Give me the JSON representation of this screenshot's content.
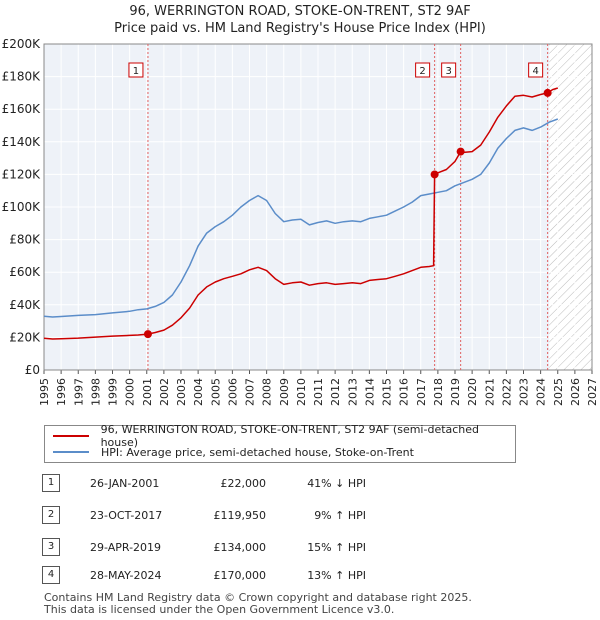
{
  "title_line1": "96, WERRINGTON ROAD, STOKE-ON-TRENT, ST2 9AF",
  "title_line2": "Price paid vs. HM Land Registry's House Price Index (HPI)",
  "chart_data": {
    "type": "line",
    "title": "96, WERRINGTON ROAD, STOKE-ON-TRENT, ST2 9AF",
    "subtitle": "Price paid vs. HM Land Registry's House Price Index (HPI)",
    "xlabel": "",
    "ylabel": "",
    "xlim": [
      1995,
      2027
    ],
    "ylim": [
      0,
      200000
    ],
    "x_ticks": [
      "1995",
      "1996",
      "1997",
      "1998",
      "1999",
      "2000",
      "2001",
      "2002",
      "2003",
      "2004",
      "2005",
      "2006",
      "2007",
      "2008",
      "2009",
      "2010",
      "2011",
      "2012",
      "2013",
      "2014",
      "2015",
      "2016",
      "2017",
      "2018",
      "2019",
      "2020",
      "2021",
      "2022",
      "2023",
      "2024",
      "2025",
      "2026",
      "2027"
    ],
    "y_ticks": [
      {
        "value": 0,
        "label": "£0"
      },
      {
        "value": 20000,
        "label": "£20K"
      },
      {
        "value": 40000,
        "label": "£40K"
      },
      {
        "value": 60000,
        "label": "£60K"
      },
      {
        "value": 80000,
        "label": "£80K"
      },
      {
        "value": 100000,
        "label": "£100K"
      },
      {
        "value": 120000,
        "label": "£120K"
      },
      {
        "value": 140000,
        "label": "£140K"
      },
      {
        "value": 160000,
        "label": "£160K"
      },
      {
        "value": 180000,
        "label": "£180K"
      },
      {
        "value": 200000,
        "label": "£200K"
      }
    ],
    "grid": true,
    "forecast_from": 2024.5,
    "series": [
      {
        "name": "96, WERRINGTON ROAD, STOKE-ON-TRENT, ST2 9AF (semi-detached house)",
        "color": "#cc0000",
        "x": [
          1995,
          1995.5,
          1996,
          1997,
          1998,
          1999,
          2000,
          2000.5,
          2001.07,
          2001.5,
          2002,
          2002.5,
          2003,
          2003.5,
          2004,
          2004.5,
          2005,
          2005.5,
          2006,
          2006.5,
          2007,
          2007.5,
          2008,
          2008.5,
          2009,
          2009.5,
          2010,
          2010.5,
          2011,
          2011.5,
          2012,
          2012.5,
          2013,
          2013.5,
          2014,
          2014.5,
          2015,
          2015.5,
          2016,
          2016.5,
          2017,
          2017.5,
          2017.75,
          2017.81,
          2018,
          2018.5,
          2019,
          2019.33,
          2019.5,
          2020,
          2020.5,
          2021,
          2021.5,
          2022,
          2022.5,
          2023,
          2023.5,
          2024,
          2024.41,
          2024.7,
          2025
        ],
        "values": [
          19500,
          19000,
          19200,
          19600,
          20200,
          20800,
          21200,
          21500,
          22000,
          23000,
          24500,
          27500,
          32000,
          38000,
          46000,
          51000,
          54000,
          56000,
          57500,
          59000,
          61500,
          63000,
          61000,
          56000,
          52500,
          53500,
          54000,
          52000,
          53000,
          53500,
          52500,
          53000,
          53500,
          53000,
          55000,
          55500,
          56000,
          57500,
          59000,
          61000,
          63000,
          63500,
          64000,
          119950,
          121000,
          123000,
          128000,
          134000,
          133500,
          134000,
          138000,
          146000,
          155000,
          162000,
          168000,
          168500,
          167500,
          169000,
          170000,
          172000,
          173000
        ]
      },
      {
        "name": "HPI: Average price, semi-detached house, Stoke-on-Trent",
        "color": "#5b8dc9",
        "x": [
          1995,
          1995.5,
          1996,
          1997,
          1998,
          1999,
          2000,
          2000.5,
          2001,
          2001.5,
          2002,
          2002.5,
          2003,
          2003.5,
          2004,
          2004.5,
          2005,
          2005.5,
          2006,
          2006.5,
          2007,
          2007.5,
          2008,
          2008.5,
          2009,
          2009.5,
          2010,
          2010.5,
          2011,
          2011.5,
          2012,
          2012.5,
          2013,
          2013.5,
          2014,
          2014.5,
          2015,
          2015.5,
          2016,
          2016.5,
          2017,
          2017.5,
          2018,
          2018.5,
          2019,
          2019.5,
          2020,
          2020.5,
          2021,
          2021.5,
          2022,
          2022.5,
          2023,
          2023.5,
          2024,
          2024.5,
          2025
        ],
        "values": [
          33000,
          32500,
          32800,
          33500,
          34000,
          35000,
          36000,
          37000,
          37500,
          39000,
          41500,
          46000,
          54000,
          64000,
          76000,
          84000,
          88000,
          91000,
          95000,
          100000,
          104000,
          107000,
          104000,
          96000,
          91000,
          92000,
          92500,
          89000,
          90500,
          91500,
          90000,
          91000,
          91500,
          91000,
          93000,
          94000,
          95000,
          97500,
          100000,
          103000,
          107000,
          108000,
          109000,
          110000,
          113000,
          115000,
          117000,
          120000,
          127000,
          136000,
          142000,
          147000,
          148500,
          147000,
          149000,
          152000,
          154000
        ]
      }
    ],
    "annotations": [
      {
        "label": "1",
        "x": 2001.07,
        "value": 22000
      },
      {
        "label": "2",
        "x": 2017.81,
        "value": 119950
      },
      {
        "label": "3",
        "x": 2019.33,
        "value": 134000
      },
      {
        "label": "4",
        "x": 2024.41,
        "value": 170000
      }
    ]
  },
  "legend": {
    "price_paid": "96, WERRINGTON ROAD, STOKE-ON-TRENT, ST2 9AF (semi-detached house)",
    "hpi": "HPI: Average price, semi-detached house, Stoke-on-Trent"
  },
  "transactions": [
    {
      "num": "1",
      "date": "26-JAN-2001",
      "price": "£22,000",
      "hpi": "41% ↓ HPI"
    },
    {
      "num": "2",
      "date": "23-OCT-2017",
      "price": "£119,950",
      "hpi": "9% ↑ HPI"
    },
    {
      "num": "3",
      "date": "29-APR-2019",
      "price": "£134,000",
      "hpi": "15% ↑ HPI"
    },
    {
      "num": "4",
      "date": "28-MAY-2024",
      "price": "£170,000",
      "hpi": "13% ↑ HPI"
    }
  ],
  "footer_line1": "Contains HM Land Registry data © Crown copyright and database right 2025.",
  "footer_line2": "This data is licensed under the Open Government Licence v3.0."
}
